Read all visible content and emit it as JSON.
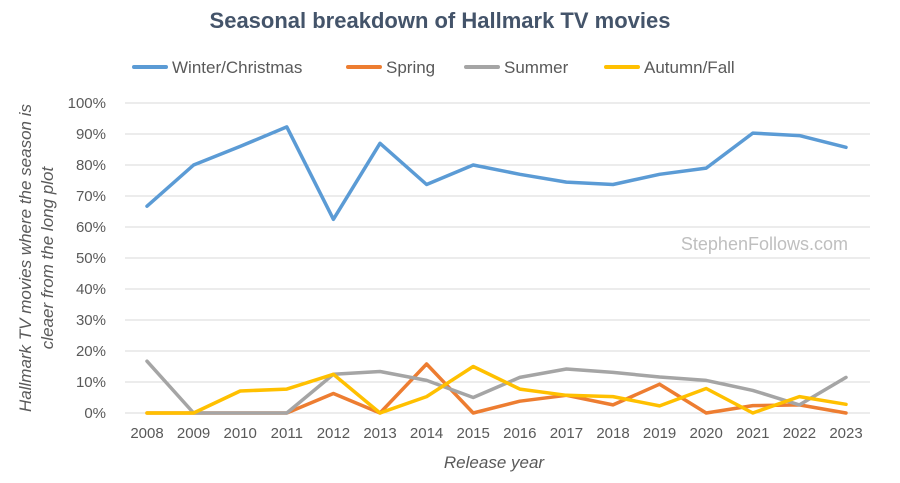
{
  "chart_data": {
    "type": "line",
    "title": "Seasonal breakdown of Hallmark TV movies",
    "xlabel": "Release year",
    "ylabel_lines": [
      "Hallmark TV movies where the season is",
      "cleaer from the long plot"
    ],
    "ylim": [
      0,
      100
    ],
    "y_ticks": [
      "0%",
      "10%",
      "20%",
      "30%",
      "40%",
      "50%",
      "60%",
      "70%",
      "80%",
      "90%",
      "100%"
    ],
    "x": [
      "2008",
      "2009",
      "2010",
      "2011",
      "2012",
      "2013",
      "2014",
      "2015",
      "2016",
      "2017",
      "2018",
      "2019",
      "2020",
      "2021",
      "2022",
      "2023"
    ],
    "series": [
      {
        "name": "Winter/Christmas",
        "color": "#5b9bd5",
        "values": [
          66.7,
          80,
          86,
          92.3,
          62.5,
          87,
          73.7,
          80,
          77,
          74.5,
          73.7,
          77,
          79,
          90.3,
          89.5,
          85.7
        ]
      },
      {
        "name": "Spring",
        "color": "#ed7d31",
        "values": [
          0,
          0,
          0,
          0,
          6.3,
          0,
          15.8,
          0,
          3.8,
          5.7,
          2.6,
          9.3,
          0,
          2.4,
          2.6,
          0
        ]
      },
      {
        "name": "Summer",
        "color": "#a5a5a5",
        "values": [
          16.7,
          0,
          0,
          0,
          12.5,
          13.4,
          10.5,
          5,
          11.5,
          14.2,
          13.1,
          11.6,
          10.5,
          7.3,
          2.6,
          11.5
        ]
      },
      {
        "name": "Autumn/Fall",
        "color": "#ffc000",
        "values": [
          0,
          0,
          7.1,
          7.7,
          12.5,
          0,
          5.3,
          15,
          7.7,
          5.7,
          5.3,
          2.3,
          7.9,
          0,
          5.3,
          2.8
        ]
      }
    ],
    "legend_position": "top",
    "grid": true
  },
  "watermark": "StephenFollows.com"
}
